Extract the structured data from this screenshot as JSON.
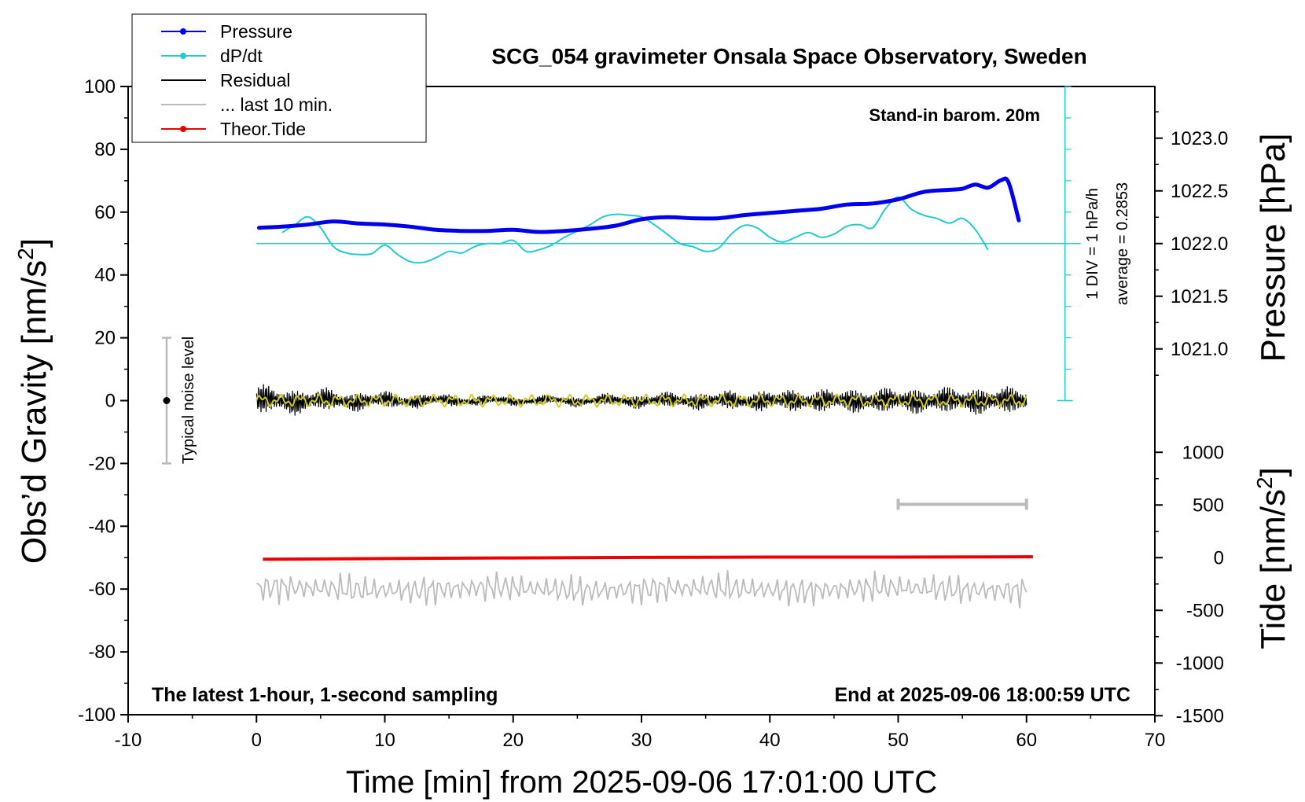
{
  "chart_data": {
    "type": "line",
    "title": "SCG_054 gravimeter Onsala Space Observatory, Sweden",
    "xlabel": "Time [min] from 2025-09-06 17:01:00 UTC",
    "ylabel_left": "Obs’d Gravity [nm/s",
    "ylabel_left_sup": "2",
    "ylabel_left_end": "]",
    "ylabel_right_top": "Pressure [hPa]",
    "ylabel_right_bottom": "Tide [nm/s",
    "ylabel_right_bottom_sup": "2",
    "ylabel_right_bottom_end": "]",
    "xlim": [
      -10,
      70
    ],
    "ylim_left": [
      -100,
      100
    ],
    "xticks": [
      "-10",
      "0",
      "10",
      "20",
      "30",
      "40",
      "50",
      "60",
      "70"
    ],
    "yticks_left": [
      "100",
      "80",
      "60",
      "40",
      "20",
      "0",
      "-20",
      "-40",
      "-60",
      "-80",
      "-100"
    ],
    "pressure_ticks": [
      "1023.0",
      "1022.5",
      "1022.0",
      "1021.5",
      "1021.0"
    ],
    "tide_ticks": [
      "1000",
      "500",
      "0",
      "-500",
      "-1000",
      "-1500"
    ],
    "annotations": {
      "barometer": "Stand-in barom. 20m",
      "div": "1 DIV = 1 hPa/h",
      "average": "average = 0.2853",
      "noise": "Typical noise level",
      "latest": "The latest 1-hour, 1-second sampling",
      "end": "End at 2025-09-06 18:00:59 UTC"
    },
    "legend": {
      "position": "top-left",
      "entries": [
        {
          "label": "Pressure",
          "color": "#0000ee",
          "marker": true
        },
        {
          "label": "dP/dt",
          "color": "#22cccc",
          "marker": true
        },
        {
          "label": "Residual",
          "color": "#000000",
          "marker": false
        },
        {
          "label": "... last 10 min.",
          "color": "#bbbbbb",
          "marker": false
        },
        {
          "label": "Theor.Tide",
          "color": "#ee0000",
          "marker": true
        }
      ]
    },
    "colors": {
      "pressure": "#0000ee",
      "dpdt": "#22cccc",
      "residual": "#000000",
      "smoothed": "#cccc22",
      "last10": "#bbbbbb",
      "tide": "#ee0000"
    },
    "series": [
      {
        "name": "Pressure",
        "unit": "hPa",
        "x": [
          0.2,
          2,
          4,
          6,
          8,
          10,
          12,
          14,
          16,
          18,
          20,
          22,
          24,
          26,
          28,
          30,
          32,
          34,
          36,
          38,
          40,
          42,
          44,
          46,
          48,
          50,
          52,
          54,
          55,
          56,
          57,
          58,
          58.6,
          59.4
        ],
        "y": [
          1022.15,
          1022.16,
          1022.18,
          1022.21,
          1022.19,
          1022.18,
          1022.16,
          1022.13,
          1022.12,
          1022.12,
          1022.13,
          1022.11,
          1022.12,
          1022.14,
          1022.17,
          1022.23,
          1022.25,
          1022.24,
          1022.24,
          1022.27,
          1022.29,
          1022.31,
          1022.33,
          1022.37,
          1022.38,
          1022.42,
          1022.49,
          1022.51,
          1022.52,
          1022.56,
          1022.53,
          1022.6,
          1022.58,
          1022.22
        ]
      },
      {
        "name": "dP/dt",
        "unit": "nm/s2 scale (1 DIV = 1 hPa/h, centred on 50)",
        "x": [
          2,
          3,
          4,
          5,
          6,
          7,
          8,
          9,
          10,
          11,
          12,
          13,
          14,
          15,
          16,
          17,
          18,
          19,
          20,
          21,
          22,
          23,
          24,
          25,
          26,
          27,
          28,
          29,
          30,
          31,
          32,
          33,
          34,
          35,
          36,
          37,
          38,
          39,
          40,
          41,
          42,
          43,
          44,
          45,
          46,
          47,
          48,
          49,
          50,
          51,
          52,
          53,
          54,
          55,
          56,
          57
        ],
        "y": [
          53.5,
          56,
          58.5,
          55,
          49,
          47,
          46.5,
          46.8,
          49.5,
          46.5,
          44.2,
          44,
          45.5,
          47.5,
          47,
          49,
          50,
          50,
          51,
          47.5,
          48,
          49.5,
          52,
          54,
          56,
          58.5,
          59.3,
          59,
          58.5,
          56,
          53,
          50,
          49,
          47.5,
          48.5,
          53,
          55.8,
          55,
          52,
          50.5,
          52,
          53.5,
          52,
          53,
          55.5,
          56,
          55,
          61,
          64.8,
          61,
          59,
          58,
          56.5,
          58,
          54.5,
          48
        ]
      },
      {
        "name": "Residual",
        "unit": "nm/s2",
        "x_range": [
          0,
          60
        ],
        "amplitude": 6,
        "min": -11,
        "max": 9.5
      },
      {
        "name": "... last 10 min.",
        "unit": "nm/s2",
        "x_range": [
          0,
          60
        ],
        "level": -60,
        "amplitude": 5
      },
      {
        "name": "Theor.Tide",
        "unit": "nm/s2",
        "x": [
          0.5,
          10,
          20,
          30,
          40,
          50,
          60.5
        ],
        "y": [
          -50.5,
          -50.3,
          -50.1,
          -49.9,
          -49.8,
          -49.8,
          -49.7
        ]
      }
    ],
    "noise_bar": {
      "x": -7,
      "center": 0,
      "low": -20,
      "high": 20
    },
    "last10_bar": {
      "x_start": 50,
      "x_end": 60,
      "y": -33
    }
  }
}
